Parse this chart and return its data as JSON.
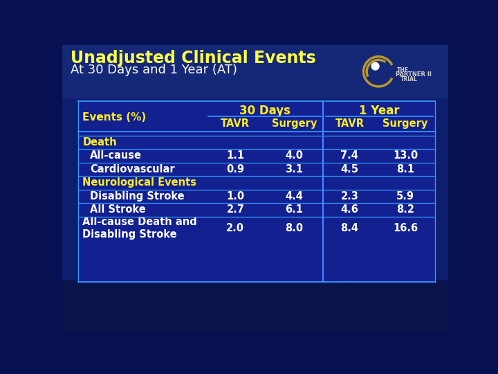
{
  "title_line1": "Unadjusted Clinical Events",
  "title_line2": "At 30 Days and 1 Year (AT)",
  "bg_top_color": "#102070",
  "bg_bot_color": "#071050",
  "table_bg": "#122090",
  "header_group1": "30 Days",
  "header_group2": "1 Year",
  "col_headers": [
    "TAVR",
    "Surgery",
    "TAVR",
    "Surgery"
  ],
  "row_label_col": "Events (%)",
  "rows": [
    {
      "label": "Death",
      "indent": false,
      "vals": null,
      "is_section": true
    },
    {
      "label": "All-cause",
      "indent": true,
      "vals": [
        "1.1",
        "4.0",
        "7.4",
        "13.0"
      ],
      "is_section": false
    },
    {
      "label": "Cardiovascular",
      "indent": true,
      "vals": [
        "0.9",
        "3.1",
        "4.5",
        "8.1"
      ],
      "is_section": false
    },
    {
      "label": "Neurological Events",
      "indent": false,
      "vals": null,
      "is_section": true
    },
    {
      "label": "Disabling Stroke",
      "indent": true,
      "vals": [
        "1.0",
        "4.4",
        "2.3",
        "5.9"
      ],
      "is_section": false
    },
    {
      "label": "All Stroke",
      "indent": true,
      "vals": [
        "2.7",
        "6.1",
        "4.6",
        "8.2"
      ],
      "is_section": false
    },
    {
      "label": "All-cause Death and\nDisabling Stroke",
      "indent": false,
      "vals": [
        "2.0",
        "8.0",
        "8.4",
        "16.6"
      ],
      "is_section": false
    }
  ],
  "yellow": "#ffff33",
  "white": "#ffffff",
  "cyan_line": "#3399ff",
  "divider_color": "#4488ff",
  "title_yellow": "#ffff44",
  "section_yellow": "#ffee22",
  "logo_gold": "#b8982a",
  "logo_text_color": "#cccccc"
}
